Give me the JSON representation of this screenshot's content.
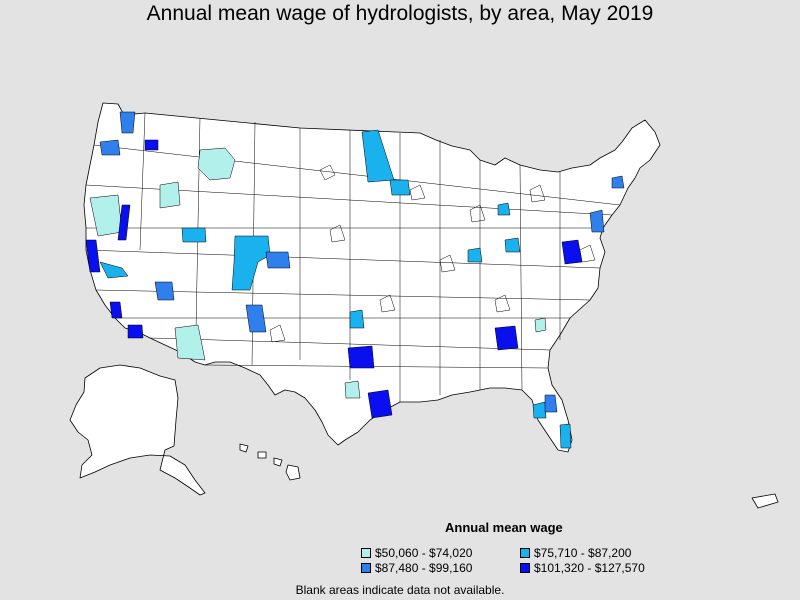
{
  "title": "Annual mean wage of hydrologists, by area, May 2019",
  "legend": {
    "title": "Annual mean wage",
    "items": [
      {
        "label": "$50,060 - $74,020",
        "color": "#b2f0ec"
      },
      {
        "label": "$75,710 - $87,200",
        "color": "#1ab1ef"
      },
      {
        "label": "$87,480 - $99,160",
        "color": "#2f80ed"
      },
      {
        "label": "$101,320 - $127,570",
        "color": "#0a0ff0"
      }
    ]
  },
  "note": "Blank areas indicate data not available.",
  "colors": {
    "background": "#e3e3e3",
    "land": "#ffffff",
    "border": "#000000"
  }
}
